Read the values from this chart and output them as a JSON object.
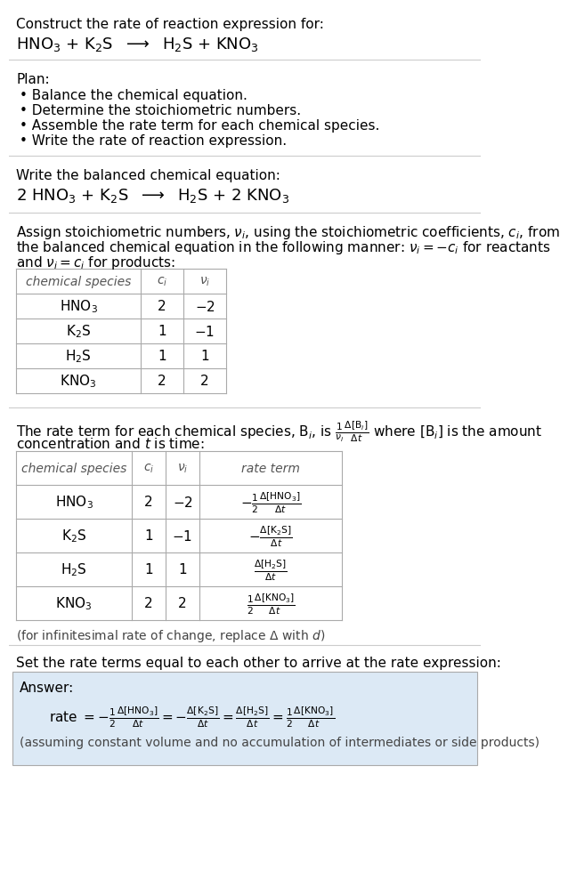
{
  "bg_color": "#ffffff",
  "text_color": "#000000",
  "answer_bg": "#dce9f5",
  "section1_title": "Construct the rate of reaction expression for:",
  "section1_eq": "HNO$_3$ + K$_2$S  $\\longrightarrow$  H$_2$S + KNO$_3$",
  "plan_title": "Plan:",
  "plan_bullets": [
    "Balance the chemical equation.",
    "Determine the stoichiometric numbers.",
    "Assemble the rate term for each chemical species.",
    "Write the rate of reaction expression."
  ],
  "balanced_title": "Write the balanced chemical equation:",
  "balanced_eq": "2 HNO$_3$ + K$_2$S  $\\longrightarrow$  H$_2$S + 2 KNO$_3$",
  "assign_text1": "Assign stoichiometric numbers, $\\nu_i$, using the stoichiometric coefficients, $c_i$, from",
  "assign_text2": "the balanced chemical equation in the following manner: $\\nu_i = -c_i$ for reactants",
  "assign_text3": "and $\\nu_i = c_i$ for products:",
  "table1_headers": [
    "chemical species",
    "$c_i$",
    "$\\nu_i$"
  ],
  "table1_rows": [
    [
      "HNO$_3$",
      "2",
      "$-2$"
    ],
    [
      "K$_2$S",
      "1",
      "$-1$"
    ],
    [
      "H$_2$S",
      "1",
      "1"
    ],
    [
      "KNO$_3$",
      "2",
      "2"
    ]
  ],
  "rate_text1": "The rate term for each chemical species, B$_i$, is $\\frac{1}{\\nu_i}\\frac{\\Delta[\\mathrm{B}_i]}{\\Delta t}$ where [B$_i$] is the amount",
  "rate_text2": "concentration and $t$ is time:",
  "table2_headers": [
    "chemical species",
    "$c_i$",
    "$\\nu_i$",
    "rate term"
  ],
  "table2_rows": [
    [
      "HNO$_3$",
      "2",
      "$-2$",
      "$-\\frac{1}{2}\\frac{\\Delta[\\mathrm{HNO_3}]}{\\Delta t}$"
    ],
    [
      "K$_2$S",
      "1",
      "$-1$",
      "$-\\frac{\\Delta[\\mathrm{K_2S}]}{\\Delta t}$"
    ],
    [
      "H$_2$S",
      "1",
      "1",
      "$\\frac{\\Delta[\\mathrm{H_2S}]}{\\Delta t}$"
    ],
    [
      "KNO$_3$",
      "2",
      "2",
      "$\\frac{1}{2}\\frac{\\Delta[\\mathrm{KNO_3}]}{\\Delta t}$"
    ]
  ],
  "infinitesimal_note": "(for infinitesimal rate of change, replace $\\Delta$ with $d$)",
  "set_rate_title": "Set the rate terms equal to each other to arrive at the rate expression:",
  "answer_label": "Answer:",
  "answer_eq": "rate $= -\\frac{1}{2}\\frac{\\Delta[\\mathrm{HNO_3}]}{\\Delta t} = -\\frac{\\Delta[\\mathrm{K_2S}]}{\\Delta t} = \\frac{\\Delta[\\mathrm{H_2S}]}{\\Delta t} = \\frac{1}{2}\\frac{\\Delta[\\mathrm{KNO_3}]}{\\Delta t}$",
  "answer_note": "(assuming constant volume and no accumulation of intermediates or side products)"
}
